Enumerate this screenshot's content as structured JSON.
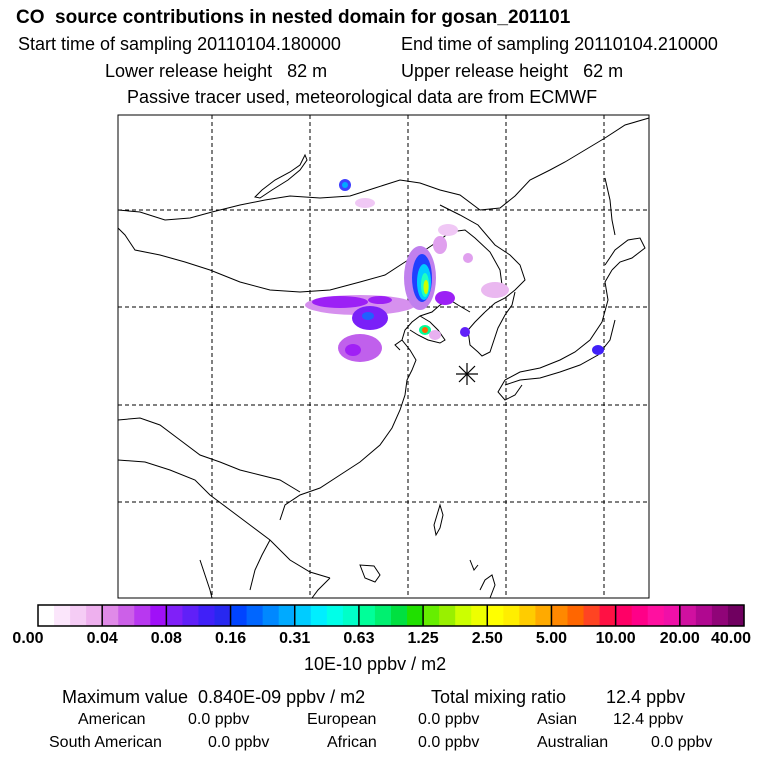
{
  "header": {
    "title": "CO  source contributions in nested domain for gosan_201101",
    "start_time": "Start time of sampling 20110104.180000",
    "end_time": "End time of sampling 20110104.210000",
    "lower_release": "Lower release height   82 m",
    "upper_release": "Upper release height   62 m",
    "tracer_note": "Passive tracer used, meteorological data are from ECMWF"
  },
  "colorbar": {
    "tick_labels": [
      "0.00",
      "0.04",
      "0.08",
      "0.16",
      "0.31",
      "0.63",
      "1.25",
      "2.50",
      "5.00",
      "10.00",
      "20.00",
      "40.00"
    ],
    "units": "10E-10 ppbv / m2",
    "colors": [
      "#ffffff",
      "#fbe6fb",
      "#f5ccf5",
      "#eeb0ee",
      "#e08ae8",
      "#cc60e8",
      "#b838f0",
      "#a010f8",
      "#8020f8",
      "#6020f8",
      "#4020f8",
      "#2828f0",
      "#0044ff",
      "#0066ff",
      "#0088ff",
      "#00aaff",
      "#00ccff",
      "#00eeff",
      "#00ffe8",
      "#00ffc8",
      "#00ff99",
      "#00f070",
      "#00e040",
      "#20e000",
      "#66ee00",
      "#99f000",
      "#ccff00",
      "#eeff00",
      "#ffff00",
      "#ffee00",
      "#ffcc00",
      "#ffaa00",
      "#ff8800",
      "#ff6600",
      "#ff4422",
      "#ff1144",
      "#ff0066",
      "#ff0088",
      "#ff10a0",
      "#f010a8",
      "#d010a0",
      "#b00890",
      "#900478",
      "#700060"
    ]
  },
  "stats": {
    "maximum": "Maximum value  0.840E-09 ppbv / m2",
    "total": "Total mixing ratio        12.4 ppbv",
    "american": "American",
    "american_val": "0.0 ppbv",
    "european": "European",
    "european_val": "0.0 ppbv",
    "asian": "Asian",
    "asian_val": "12.4 ppbv",
    "south_american": "South American",
    "south_american_val": "0.0 ppbv",
    "african": "African",
    "african_val": "0.0 ppbv",
    "australian": "Australian",
    "australian_val": "0.0 ppbv"
  }
}
